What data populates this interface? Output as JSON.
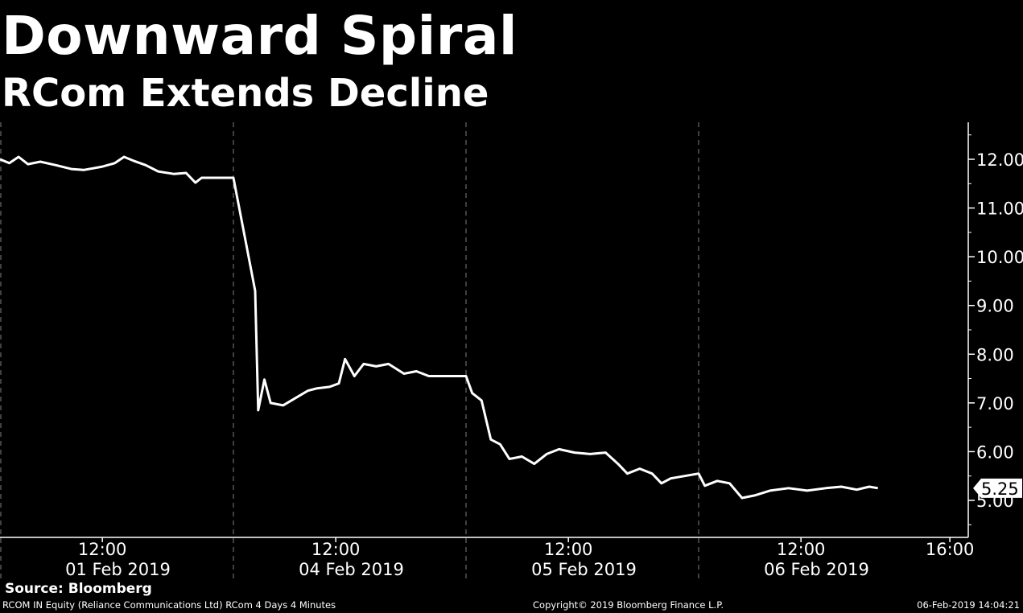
{
  "header": {
    "title": "Downward Spiral",
    "subtitle": "RCom Extends Decline"
  },
  "footer": {
    "source": "Source: Bloomberg",
    "description": "RCOM IN Equity (Reliance Communications Ltd) RCom 4 Days 4 Minutes",
    "copyright": "Copyright© 2019 Bloomberg Finance L.P.",
    "timestamp": "06-Feb-2019 14:04:21"
  },
  "colors": {
    "background": "#000000",
    "line": "#ffffff",
    "axis": "#ffffff",
    "day_separator": "#808080",
    "last_value_badge": "#ffffff"
  },
  "chart_data": {
    "type": "line",
    "title": "Downward Spiral",
    "subtitle": "RCom Extends Decline",
    "xlabel": "",
    "ylabel": "",
    "y_axis_position": "right",
    "ylim": [
      4.25,
      12.75
    ],
    "y_ticks": [
      "5.00",
      "6.00",
      "7.00",
      "8.00",
      "9.00",
      "10.00",
      "11.00",
      "12.00"
    ],
    "x_tick_labels": [
      {
        "time": "12:00",
        "date": "01 Feb 2019"
      },
      {
        "time": "12:00",
        "date": "04 Feb 2019"
      },
      {
        "time": "12:00",
        "date": "05 Feb 2019"
      },
      {
        "time": "12:00",
        "date": "06 Feb 2019"
      },
      {
        "time": "16:00",
        "date": ""
      }
    ],
    "last_value_label": "5.25",
    "grid": false,
    "series": [
      {
        "name": "RCOM IN Equity",
        "values": [
          {
            "t": "01 Feb 09:15",
            "v": 12.0
          },
          {
            "t": "01 Feb 09:30",
            "v": 11.92
          },
          {
            "t": "01 Feb 09:45",
            "v": 12.05
          },
          {
            "t": "01 Feb 10:00",
            "v": 11.9
          },
          {
            "t": "01 Feb 10:20",
            "v": 11.95
          },
          {
            "t": "01 Feb 10:45",
            "v": 11.88
          },
          {
            "t": "01 Feb 11:10",
            "v": 11.8
          },
          {
            "t": "01 Feb 11:30",
            "v": 11.78
          },
          {
            "t": "01 Feb 12:00",
            "v": 11.85
          },
          {
            "t": "01 Feb 12:20",
            "v": 11.92
          },
          {
            "t": "01 Feb 12:35",
            "v": 12.05
          },
          {
            "t": "01 Feb 12:50",
            "v": 11.97
          },
          {
            "t": "01 Feb 13:10",
            "v": 11.88
          },
          {
            "t": "01 Feb 13:30",
            "v": 11.75
          },
          {
            "t": "01 Feb 13:55",
            "v": 11.7
          },
          {
            "t": "01 Feb 14:15",
            "v": 11.72
          },
          {
            "t": "01 Feb 14:30",
            "v": 11.52
          },
          {
            "t": "01 Feb 14:40",
            "v": 11.62
          },
          {
            "t": "01 Feb 15:30",
            "v": 11.62
          },
          {
            "t": "04 Feb 09:15",
            "v": 11.62
          },
          {
            "t": "04 Feb 09:35",
            "v": 10.3
          },
          {
            "t": "04 Feb 09:50",
            "v": 9.3
          },
          {
            "t": "04 Feb 09:55",
            "v": 6.85
          },
          {
            "t": "04 Feb 10:05",
            "v": 7.48
          },
          {
            "t": "04 Feb 10:15",
            "v": 7.0
          },
          {
            "t": "04 Feb 10:35",
            "v": 6.95
          },
          {
            "t": "04 Feb 10:55",
            "v": 7.1
          },
          {
            "t": "04 Feb 11:15",
            "v": 7.25
          },
          {
            "t": "04 Feb 11:30",
            "v": 7.3
          },
          {
            "t": "04 Feb 11:50",
            "v": 7.33
          },
          {
            "t": "04 Feb 12:05",
            "v": 7.4
          },
          {
            "t": "04 Feb 12:15",
            "v": 7.9
          },
          {
            "t": "04 Feb 12:30",
            "v": 7.55
          },
          {
            "t": "04 Feb 12:45",
            "v": 7.8
          },
          {
            "t": "04 Feb 13:05",
            "v": 7.75
          },
          {
            "t": "04 Feb 13:25",
            "v": 7.8
          },
          {
            "t": "04 Feb 13:50",
            "v": 7.6
          },
          {
            "t": "04 Feb 14:10",
            "v": 7.65
          },
          {
            "t": "04 Feb 14:30",
            "v": 7.55
          },
          {
            "t": "04 Feb 15:30",
            "v": 7.55
          },
          {
            "t": "05 Feb 09:15",
            "v": 7.55
          },
          {
            "t": "05 Feb 09:25",
            "v": 7.2
          },
          {
            "t": "05 Feb 09:40",
            "v": 7.05
          },
          {
            "t": "05 Feb 09:55",
            "v": 6.25
          },
          {
            "t": "05 Feb 10:10",
            "v": 6.15
          },
          {
            "t": "05 Feb 10:25",
            "v": 5.85
          },
          {
            "t": "05 Feb 10:45",
            "v": 5.9
          },
          {
            "t": "05 Feb 11:05",
            "v": 5.75
          },
          {
            "t": "05 Feb 11:25",
            "v": 5.95
          },
          {
            "t": "05 Feb 11:45",
            "v": 6.05
          },
          {
            "t": "05 Feb 12:10",
            "v": 5.98
          },
          {
            "t": "05 Feb 12:35",
            "v": 5.95
          },
          {
            "t": "05 Feb 13:00",
            "v": 5.98
          },
          {
            "t": "05 Feb 13:20",
            "v": 5.75
          },
          {
            "t": "05 Feb 13:35",
            "v": 5.55
          },
          {
            "t": "05 Feb 13:55",
            "v": 5.65
          },
          {
            "t": "05 Feb 14:15",
            "v": 5.55
          },
          {
            "t": "05 Feb 14:30",
            "v": 5.35
          },
          {
            "t": "05 Feb 14:45",
            "v": 5.45
          },
          {
            "t": "05 Feb 15:30",
            "v": 5.55
          },
          {
            "t": "06 Feb 09:15",
            "v": 5.55
          },
          {
            "t": "06 Feb 09:25",
            "v": 5.3
          },
          {
            "t": "06 Feb 09:45",
            "v": 5.4
          },
          {
            "t": "06 Feb 10:05",
            "v": 5.35
          },
          {
            "t": "06 Feb 10:25",
            "v": 5.05
          },
          {
            "t": "06 Feb 10:45",
            "v": 5.1
          },
          {
            "t": "06 Feb 11:10",
            "v": 5.2
          },
          {
            "t": "06 Feb 11:40",
            "v": 5.25
          },
          {
            "t": "06 Feb 12:10",
            "v": 5.2
          },
          {
            "t": "06 Feb 12:40",
            "v": 5.25
          },
          {
            "t": "06 Feb 13:05",
            "v": 5.28
          },
          {
            "t": "06 Feb 13:30",
            "v": 5.22
          },
          {
            "t": "06 Feb 13:50",
            "v": 5.28
          },
          {
            "t": "06 Feb 14:04",
            "v": 5.25
          }
        ]
      }
    ]
  }
}
